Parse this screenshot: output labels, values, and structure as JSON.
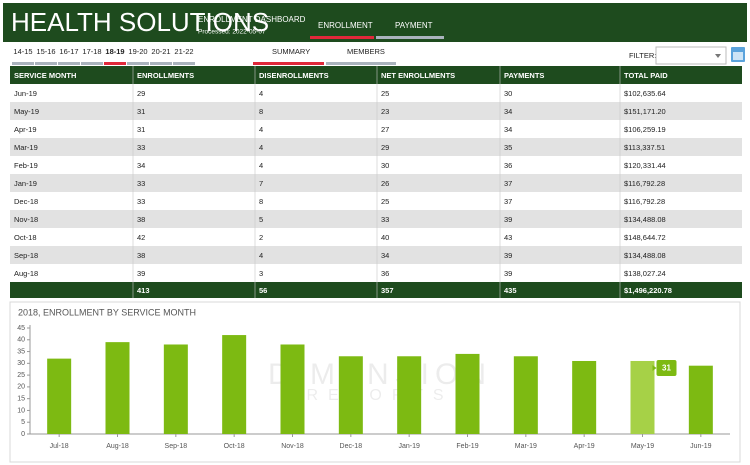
{
  "header": {
    "title": "HEALTH SOLUTIONS",
    "subtitle": "ENROLLMENT DASHBOARD",
    "processed": "Processed: 2022-05-07",
    "tabs": [
      "ENROLLMENT",
      "PAYMENT"
    ]
  },
  "year_tabs": [
    "14-15",
    "15-16",
    "16-17",
    "17-18",
    "18-19",
    "19-20",
    "20-21",
    "21-22"
  ],
  "sub_tabs": [
    "SUMMARY",
    "MEMBERS"
  ],
  "filter_label": "FILTER:",
  "table": {
    "columns": [
      "SERVICE MONTH",
      "ENROLLMENTS",
      "DISENROLLMENTS",
      "NET ENROLLMENTS",
      "PAYMENTS",
      "TOTAL PAID"
    ],
    "rows": [
      [
        "Jun-19",
        29,
        4,
        25,
        30,
        "$102,635.64"
      ],
      [
        "May-19",
        31,
        8,
        23,
        34,
        "$151,171.20"
      ],
      [
        "Apr-19",
        31,
        4,
        27,
        34,
        "$106,259.19"
      ],
      [
        "Mar-19",
        33,
        4,
        29,
        35,
        "$113,337.51"
      ],
      [
        "Feb-19",
        34,
        4,
        30,
        36,
        "$120,331.44"
      ],
      [
        "Jan-19",
        33,
        7,
        26,
        37,
        "$116,792.28"
      ],
      [
        "Dec-18",
        33,
        8,
        25,
        37,
        "$116,792.28"
      ],
      [
        "Nov-18",
        38,
        5,
        33,
        39,
        "$134,488.08"
      ],
      [
        "Oct-18",
        42,
        2,
        40,
        43,
        "$148,644.72"
      ],
      [
        "Sep-18",
        38,
        4,
        34,
        39,
        "$134,488.08"
      ],
      [
        "Aug-18",
        39,
        3,
        36,
        39,
        "$138,027.24"
      ]
    ],
    "totals": [
      null,
      413,
      56,
      357,
      435,
      "$1,496,220.78"
    ]
  },
  "chart_data": {
    "type": "bar",
    "title": "2018, ENROLLMENT BY SERVICE MONTH",
    "categories": [
      "Jul-18",
      "Aug-18",
      "Sep-18",
      "Oct-18",
      "Nov-18",
      "Dec-18",
      "Jan-19",
      "Feb-19",
      "Mar-19",
      "Apr-19",
      "May-19",
      "Jun-19"
    ],
    "values": [
      32,
      39,
      38,
      42,
      38,
      33,
      33,
      34,
      33,
      31,
      31,
      29
    ],
    "colors": [
      "#7dba12",
      "#7dba12",
      "#7dba12",
      "#7dba12",
      "#7dba12",
      "#7dba12",
      "#7dba12",
      "#7dba12",
      "#7dba12",
      "#7dba12",
      "#a6d147",
      "#7dba12"
    ],
    "ylim": [
      0,
      45
    ],
    "yticks": [
      0,
      5,
      10,
      15,
      20,
      25,
      30,
      35,
      40,
      45
    ],
    "grid": false,
    "watermark": [
      "DIMENSION",
      "REPORTS"
    ]
  }
}
